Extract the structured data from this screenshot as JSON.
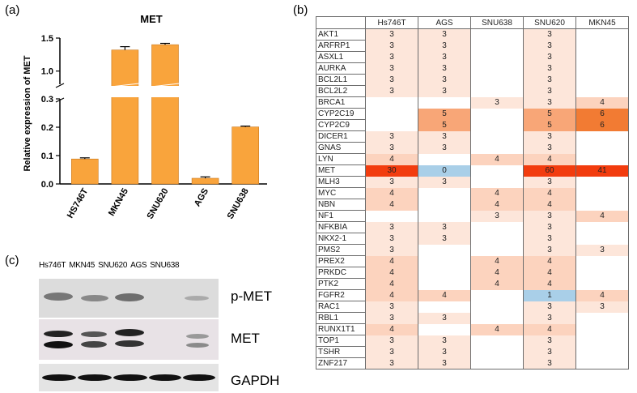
{
  "panel_labels": {
    "a": "(a)",
    "b": "(b)",
    "c": "(c)"
  },
  "chart_data": {
    "type": "bar",
    "title": "MET",
    "ylabel": "Relative expression of MET",
    "categories": [
      "HS746T",
      "MKN45",
      "SNU620",
      "AGS",
      "SNU638"
    ],
    "values": [
      0.088,
      1.32,
      1.4,
      0.02,
      0.201
    ],
    "errors": [
      0.004,
      0.05,
      0.02,
      0.005,
      0.003
    ],
    "axis_break": {
      "lower": [
        0,
        0.3
      ],
      "upper": [
        0.8,
        1.5
      ]
    },
    "lower_ticks": [
      "0.0",
      "0.1",
      "0.2",
      "0.3"
    ],
    "upper_ticks": [
      "1.0",
      "1.5"
    ],
    "bar_color": "#f9a43c",
    "heatmap": {
      "columns": [
        "Hs746T",
        "AGS",
        "SNU638",
        "SNU620",
        "MKN45"
      ],
      "rows": [
        {
          "gene": "AKT1",
          "values": [
            "3",
            "3",
            "",
            "3",
            ""
          ]
        },
        {
          "gene": "ARFRP1",
          "values": [
            "3",
            "3",
            "",
            "3",
            ""
          ]
        },
        {
          "gene": "ASXL1",
          "values": [
            "3",
            "3",
            "",
            "3",
            ""
          ]
        },
        {
          "gene": "AURKA",
          "values": [
            "3",
            "3",
            "",
            "3",
            ""
          ]
        },
        {
          "gene": "BCL2L1",
          "values": [
            "3",
            "3",
            "",
            "3",
            ""
          ]
        },
        {
          "gene": "BCL2L2",
          "values": [
            "3",
            "3",
            "",
            "3",
            ""
          ]
        },
        {
          "gene": "BRCA1",
          "values": [
            "",
            "",
            "3",
            "3",
            "4"
          ]
        },
        {
          "gene": "CYP2C19",
          "values": [
            "",
            "5",
            "",
            "5",
            "6"
          ]
        },
        {
          "gene": "CYP2C9",
          "values": [
            "",
            "5",
            "",
            "5",
            "6"
          ]
        },
        {
          "gene": "DICER1",
          "values": [
            "3",
            "3",
            "",
            "3",
            ""
          ]
        },
        {
          "gene": "GNAS",
          "values": [
            "3",
            "3",
            "",
            "3",
            ""
          ]
        },
        {
          "gene": "LYN",
          "values": [
            "4",
            "",
            "4",
            "4",
            ""
          ]
        },
        {
          "gene": "MET",
          "values": [
            "30",
            "0",
            "",
            "60",
            "41"
          ]
        },
        {
          "gene": "MLH3",
          "values": [
            "3",
            "3",
            "",
            "3",
            ""
          ]
        },
        {
          "gene": "MYC",
          "values": [
            "4",
            "",
            "4",
            "4",
            ""
          ]
        },
        {
          "gene": "NBN",
          "values": [
            "4",
            "",
            "4",
            "4",
            ""
          ]
        },
        {
          "gene": "NF1",
          "values": [
            "",
            "",
            "3",
            "3",
            "4"
          ]
        },
        {
          "gene": "NFKBIA",
          "values": [
            "3",
            "3",
            "",
            "3",
            ""
          ]
        },
        {
          "gene": "NKX2-1",
          "values": [
            "3",
            "3",
            "",
            "3",
            ""
          ]
        },
        {
          "gene": "PMS2",
          "values": [
            "3",
            "",
            "",
            "3",
            "3"
          ]
        },
        {
          "gene": "PREX2",
          "values": [
            "4",
            "",
            "4",
            "4",
            ""
          ]
        },
        {
          "gene": "PRKDC",
          "values": [
            "4",
            "",
            "4",
            "4",
            ""
          ]
        },
        {
          "gene": "PTK2",
          "values": [
            "4",
            "",
            "4",
            "4",
            ""
          ]
        },
        {
          "gene": "FGFR2",
          "values": [
            "4",
            "4",
            "",
            "1",
            "4"
          ]
        },
        {
          "gene": "RAC1",
          "values": [
            "3",
            "",
            "",
            "3",
            "3"
          ]
        },
        {
          "gene": "RBL1",
          "values": [
            "3",
            "3",
            "",
            "3",
            ""
          ]
        },
        {
          "gene": "RUNX1T1",
          "values": [
            "4",
            "",
            "4",
            "4",
            ""
          ]
        },
        {
          "gene": "TOP1",
          "values": [
            "3",
            "3",
            "",
            "3",
            ""
          ]
        },
        {
          "gene": "TSHR",
          "values": [
            "3",
            "3",
            "",
            "3",
            ""
          ]
        },
        {
          "gene": "ZNF217",
          "values": [
            "3",
            "3",
            "",
            "3",
            ""
          ]
        }
      ],
      "colors": {
        "3": "#fde6da",
        "4": "#fcd3be",
        "5": "#f8a677",
        "6": "#f27b33",
        "30": "#f23c0e",
        "41": "#f23c0e",
        "60": "#f23c0e",
        "0": "#a9cfe8",
        "1": "#a9cfe8",
        "": "#ffffff"
      }
    },
    "blot": {
      "lanes": [
        "Hs746T",
        "MKN45",
        "SNU620",
        "AGS",
        "SNU638"
      ],
      "labels": [
        "p-MET",
        "MET",
        "GAPDH"
      ]
    }
  }
}
